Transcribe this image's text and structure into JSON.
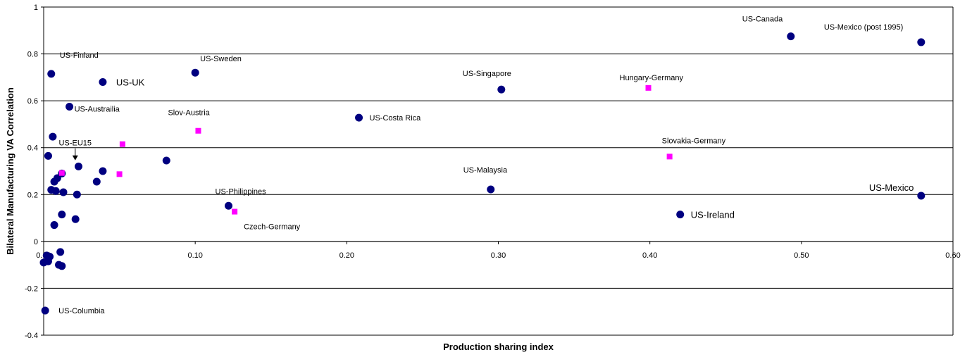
{
  "chart_data": {
    "type": "scatter",
    "xlabel": "Production sharing index",
    "ylabel": "Bilateral Manufacturing VA Correlation",
    "xlim": [
      0,
      0.6
    ],
    "ylim": [
      -0.4,
      1
    ],
    "xticks": [
      "0.00",
      "0.10",
      "0.20",
      "0.30",
      "0.40",
      "0.50",
      "0.60"
    ],
    "yticks": [
      "-0.4",
      "-0.2",
      "0",
      "0.2",
      "0.4",
      "0.6",
      "0.8",
      "1"
    ],
    "grid": "horizontal",
    "series": [
      {
        "marker": "circle",
        "color": "#000080",
        "points": [
          {
            "x": 0.005,
            "y": 0.715,
            "label": "US-Finland"
          },
          {
            "x": 0.039,
            "y": 0.68,
            "label": "US-UK"
          },
          {
            "x": 0.017,
            "y": 0.575,
            "label": "US-Austrailia"
          },
          {
            "x": 0.1,
            "y": 0.72,
            "label": "US-Sweden"
          },
          {
            "x": 0.302,
            "y": 0.648,
            "label": "US-Singapore"
          },
          {
            "x": 0.208,
            "y": 0.528,
            "label": "US-Costa Rica"
          },
          {
            "x": 0.493,
            "y": 0.875,
            "label": "US-Canada"
          },
          {
            "x": 0.579,
            "y": 0.85,
            "label": "US-Mexico (post 1995)"
          },
          {
            "x": 0.295,
            "y": 0.222,
            "label": "US-Malaysia"
          },
          {
            "x": 0.122,
            "y": 0.152,
            "label": "US-Philippines"
          },
          {
            "x": 0.579,
            "y": 0.195,
            "label": "US-Mexico"
          },
          {
            "x": 0.42,
            "y": 0.115,
            "label": "US-Ireland"
          },
          {
            "x": 0.001,
            "y": -0.295,
            "label": "US-Columbia"
          },
          {
            "x": 0.006,
            "y": 0.447
          },
          {
            "x": 0.003,
            "y": 0.365
          },
          {
            "x": 0.023,
            "y": 0.32
          },
          {
            "x": 0.039,
            "y": 0.3
          },
          {
            "x": 0.081,
            "y": 0.345
          },
          {
            "x": 0.035,
            "y": 0.255
          },
          {
            "x": 0.012,
            "y": 0.29
          },
          {
            "x": 0.009,
            "y": 0.27
          },
          {
            "x": 0.007,
            "y": 0.255
          },
          {
            "x": 0.005,
            "y": 0.22
          },
          {
            "x": 0.008,
            "y": 0.215
          },
          {
            "x": 0.013,
            "y": 0.21
          },
          {
            "x": 0.022,
            "y": 0.2
          },
          {
            "x": 0.012,
            "y": 0.115
          },
          {
            "x": 0.021,
            "y": 0.095
          },
          {
            "x": 0.007,
            "y": 0.07
          },
          {
            "x": 0.011,
            "y": -0.045
          },
          {
            "x": 0.002,
            "y": -0.06
          },
          {
            "x": 0.004,
            "y": -0.065
          },
          {
            "x": 0.0,
            "y": -0.09
          },
          {
            "x": 0.003,
            "y": -0.085
          },
          {
            "x": 0.01,
            "y": -0.1
          },
          {
            "x": 0.012,
            "y": -0.105
          }
        ]
      },
      {
        "marker": "square",
        "color": "#ff00ff",
        "points": [
          {
            "x": 0.399,
            "y": 0.655,
            "label": "Hungary-Germany"
          },
          {
            "x": 0.102,
            "y": 0.472,
            "label": "Slov-Austria"
          },
          {
            "x": 0.413,
            "y": 0.362,
            "label": "Slovakia-Germany"
          },
          {
            "x": 0.126,
            "y": 0.127,
            "label": "Czech-Germany"
          },
          {
            "x": 0.052,
            "y": 0.415
          },
          {
            "x": 0.05,
            "y": 0.287
          },
          {
            "x": 0.012,
            "y": 0.292
          }
        ]
      }
    ],
    "annotations": [
      {
        "text": "US-EU15",
        "arrow": true,
        "x": 0.025,
        "y": 0.355
      }
    ]
  }
}
